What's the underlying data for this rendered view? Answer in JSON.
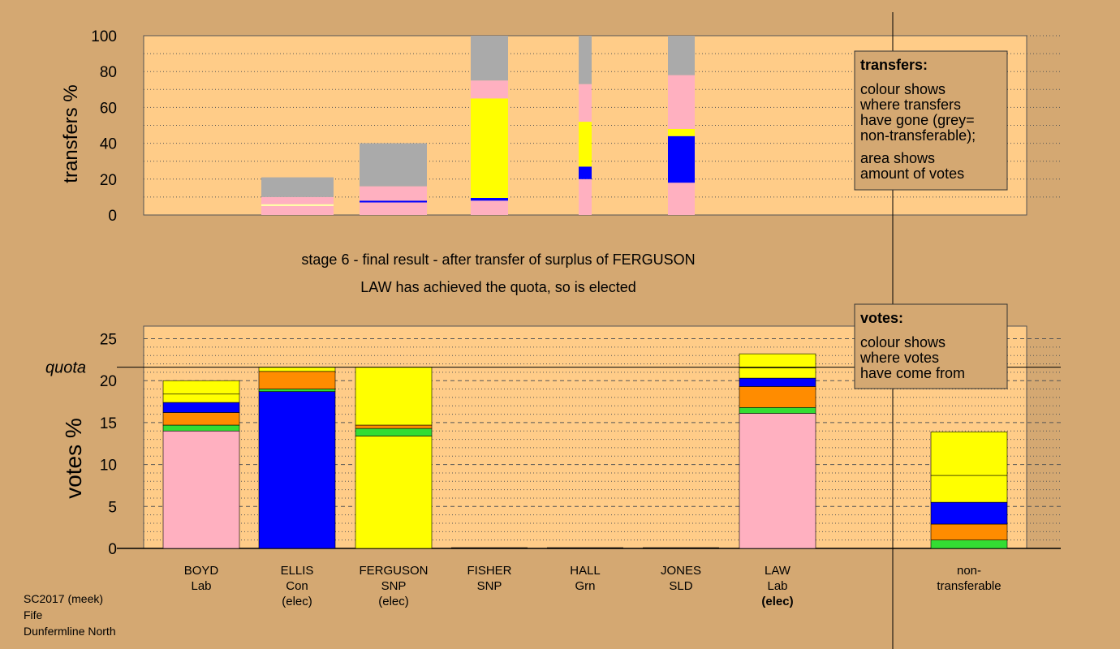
{
  "colors": {
    "background": "#d4a872",
    "plot_bg": "#ffcc88",
    "pink": "#ffb0c0",
    "green": "#33dd33",
    "orange": "#ff8c00",
    "blue": "#0000ff",
    "yellow": "#ffff00",
    "grey": "#aaaaaa",
    "pale_yellow": "#ffffaa"
  },
  "stage_text": "stage 6 - final result - after transfer of surplus of FERGUSON",
  "status_text": "LAW has achieved the quota, so is elected",
  "quota_label": "quota",
  "footer": [
    "SC2017 (meek)",
    "Fife",
    "Dunfermline North"
  ],
  "transfers_legend": {
    "title": "transfers:",
    "lines": [
      "colour shows",
      "where transfers",
      "have gone (grey=",
      "non-transferable);"
    ],
    "lines2": [
      "area shows",
      "amount of votes"
    ]
  },
  "votes_legend": {
    "title": "votes:",
    "lines": [
      "colour shows",
      "where votes",
      "have come from"
    ]
  },
  "candidates": [
    {
      "name": "BOYD",
      "party": "Lab",
      "status": ""
    },
    {
      "name": "ELLIS",
      "party": "Con",
      "status": "(elec)"
    },
    {
      "name": "FERGUSON",
      "party": "SNP",
      "status": "(elec)"
    },
    {
      "name": "FISHER",
      "party": "SNP",
      "status": ""
    },
    {
      "name": "HALL",
      "party": "Grn",
      "status": ""
    },
    {
      "name": "JONES",
      "party": "SLD",
      "status": ""
    },
    {
      "name": "LAW",
      "party": "Lab",
      "status": "(elec)"
    },
    {
      "name": "non-",
      "party": "transferable",
      "status": ""
    }
  ],
  "chart_data": [
    {
      "type": "bar",
      "title": "",
      "ylabel": "transfers %",
      "ylim": [
        0,
        100
      ],
      "yticks": [
        0,
        20,
        40,
        60,
        80,
        100
      ],
      "bars": [
        {
          "stage": 1,
          "segments": [
            {
              "color": "pink",
              "from": 0,
              "to": 5
            },
            {
              "color": "pale_yellow",
              "from": 5,
              "to": 6
            },
            {
              "color": "pink",
              "from": 6,
              "to": 10
            },
            {
              "color": "grey",
              "from": 10,
              "to": 21
            }
          ]
        },
        {
          "stage": 2,
          "segments": [
            {
              "color": "pink",
              "from": 0,
              "to": 7
            },
            {
              "color": "blue",
              "from": 7,
              "to": 8
            },
            {
              "color": "pink",
              "from": 8,
              "to": 16
            },
            {
              "color": "grey",
              "from": 16,
              "to": 40
            }
          ]
        },
        {
          "stage": 3,
          "segments": [
            {
              "color": "pink",
              "from": 0,
              "to": 8
            },
            {
              "color": "blue",
              "from": 8,
              "to": 9.5
            },
            {
              "color": "yellow",
              "from": 9.5,
              "to": 65
            },
            {
              "color": "pink",
              "from": 65,
              "to": 75
            },
            {
              "color": "grey",
              "from": 75,
              "to": 100
            }
          ]
        },
        {
          "stage": 4,
          "segments": [
            {
              "color": "pink",
              "from": 0,
              "to": 20
            },
            {
              "color": "blue",
              "from": 20,
              "to": 27
            },
            {
              "color": "yellow",
              "from": 27,
              "to": 52
            },
            {
              "color": "pink",
              "from": 52,
              "to": 73
            },
            {
              "color": "grey",
              "from": 73,
              "to": 100
            }
          ]
        },
        {
          "stage": 5,
          "segments": [
            {
              "color": "pink",
              "from": 0,
              "to": 18
            },
            {
              "color": "blue",
              "from": 18,
              "to": 44
            },
            {
              "color": "yellow",
              "from": 44,
              "to": 48
            },
            {
              "color": "pink",
              "from": 48,
              "to": 78
            },
            {
              "color": "grey",
              "from": 78,
              "to": 100
            }
          ]
        }
      ]
    },
    {
      "type": "bar",
      "title": "",
      "ylabel": "votes %",
      "ylim": [
        0,
        26.5
      ],
      "yticks": [
        0,
        5,
        10,
        15,
        20,
        25
      ],
      "quota": 21.6,
      "categories": [
        "BOYD Lab",
        "ELLIS Con (elec)",
        "FERGUSON SNP (elec)",
        "FISHER SNP",
        "HALL Grn",
        "JONES SLD",
        "LAW Lab (elec)",
        "non-transferable"
      ],
      "bars": [
        {
          "candidate": "BOYD",
          "segments": [
            {
              "color": "pink",
              "from": 0,
              "to": 14
            },
            {
              "color": "green",
              "from": 14,
              "to": 14.7
            },
            {
              "color": "orange",
              "from": 14.7,
              "to": 16.2
            },
            {
              "color": "blue",
              "from": 16.2,
              "to": 17.4
            },
            {
              "color": "yellow",
              "from": 17.4,
              "to": 18.4
            },
            {
              "color": "yellow",
              "from": 18.4,
              "to": 20
            }
          ]
        },
        {
          "candidate": "ELLIS",
          "segments": [
            {
              "color": "blue",
              "from": 0,
              "to": 18.7
            },
            {
              "color": "green",
              "from": 18.7,
              "to": 19
            },
            {
              "color": "orange",
              "from": 19,
              "to": 21.1
            },
            {
              "color": "yellow",
              "from": 21.1,
              "to": 21.6
            }
          ]
        },
        {
          "candidate": "FERGUSON",
          "segments": [
            {
              "color": "yellow",
              "from": 0,
              "to": 13.4
            },
            {
              "color": "green",
              "from": 13.4,
              "to": 14.3
            },
            {
              "color": "orange",
              "from": 14.3,
              "to": 14.7
            },
            {
              "color": "yellow",
              "from": 14.7,
              "to": 21.6
            }
          ]
        },
        {
          "candidate": "FISHER",
          "segments": []
        },
        {
          "candidate": "HALL",
          "segments": []
        },
        {
          "candidate": "JONES",
          "segments": []
        },
        {
          "candidate": "LAW",
          "segments": [
            {
              "color": "pink",
              "from": 0,
              "to": 16.1
            },
            {
              "color": "green",
              "from": 16.1,
              "to": 16.8
            },
            {
              "color": "orange",
              "from": 16.8,
              "to": 19.3
            },
            {
              "color": "blue",
              "from": 19.3,
              "to": 20.3
            },
            {
              "color": "yellow",
              "from": 20.3,
              "to": 21.5
            },
            {
              "color": "yellow",
              "from": 21.5,
              "to": 23.2
            }
          ]
        },
        {
          "candidate": "non-transferable",
          "segments": [
            {
              "color": "green",
              "from": 0,
              "to": 1
            },
            {
              "color": "orange",
              "from": 1,
              "to": 2.9
            },
            {
              "color": "blue",
              "from": 2.9,
              "to": 5.5
            },
            {
              "color": "yellow",
              "from": 5.5,
              "to": 8.7
            },
            {
              "color": "yellow",
              "from": 8.7,
              "to": 13.9
            }
          ]
        }
      ]
    }
  ]
}
